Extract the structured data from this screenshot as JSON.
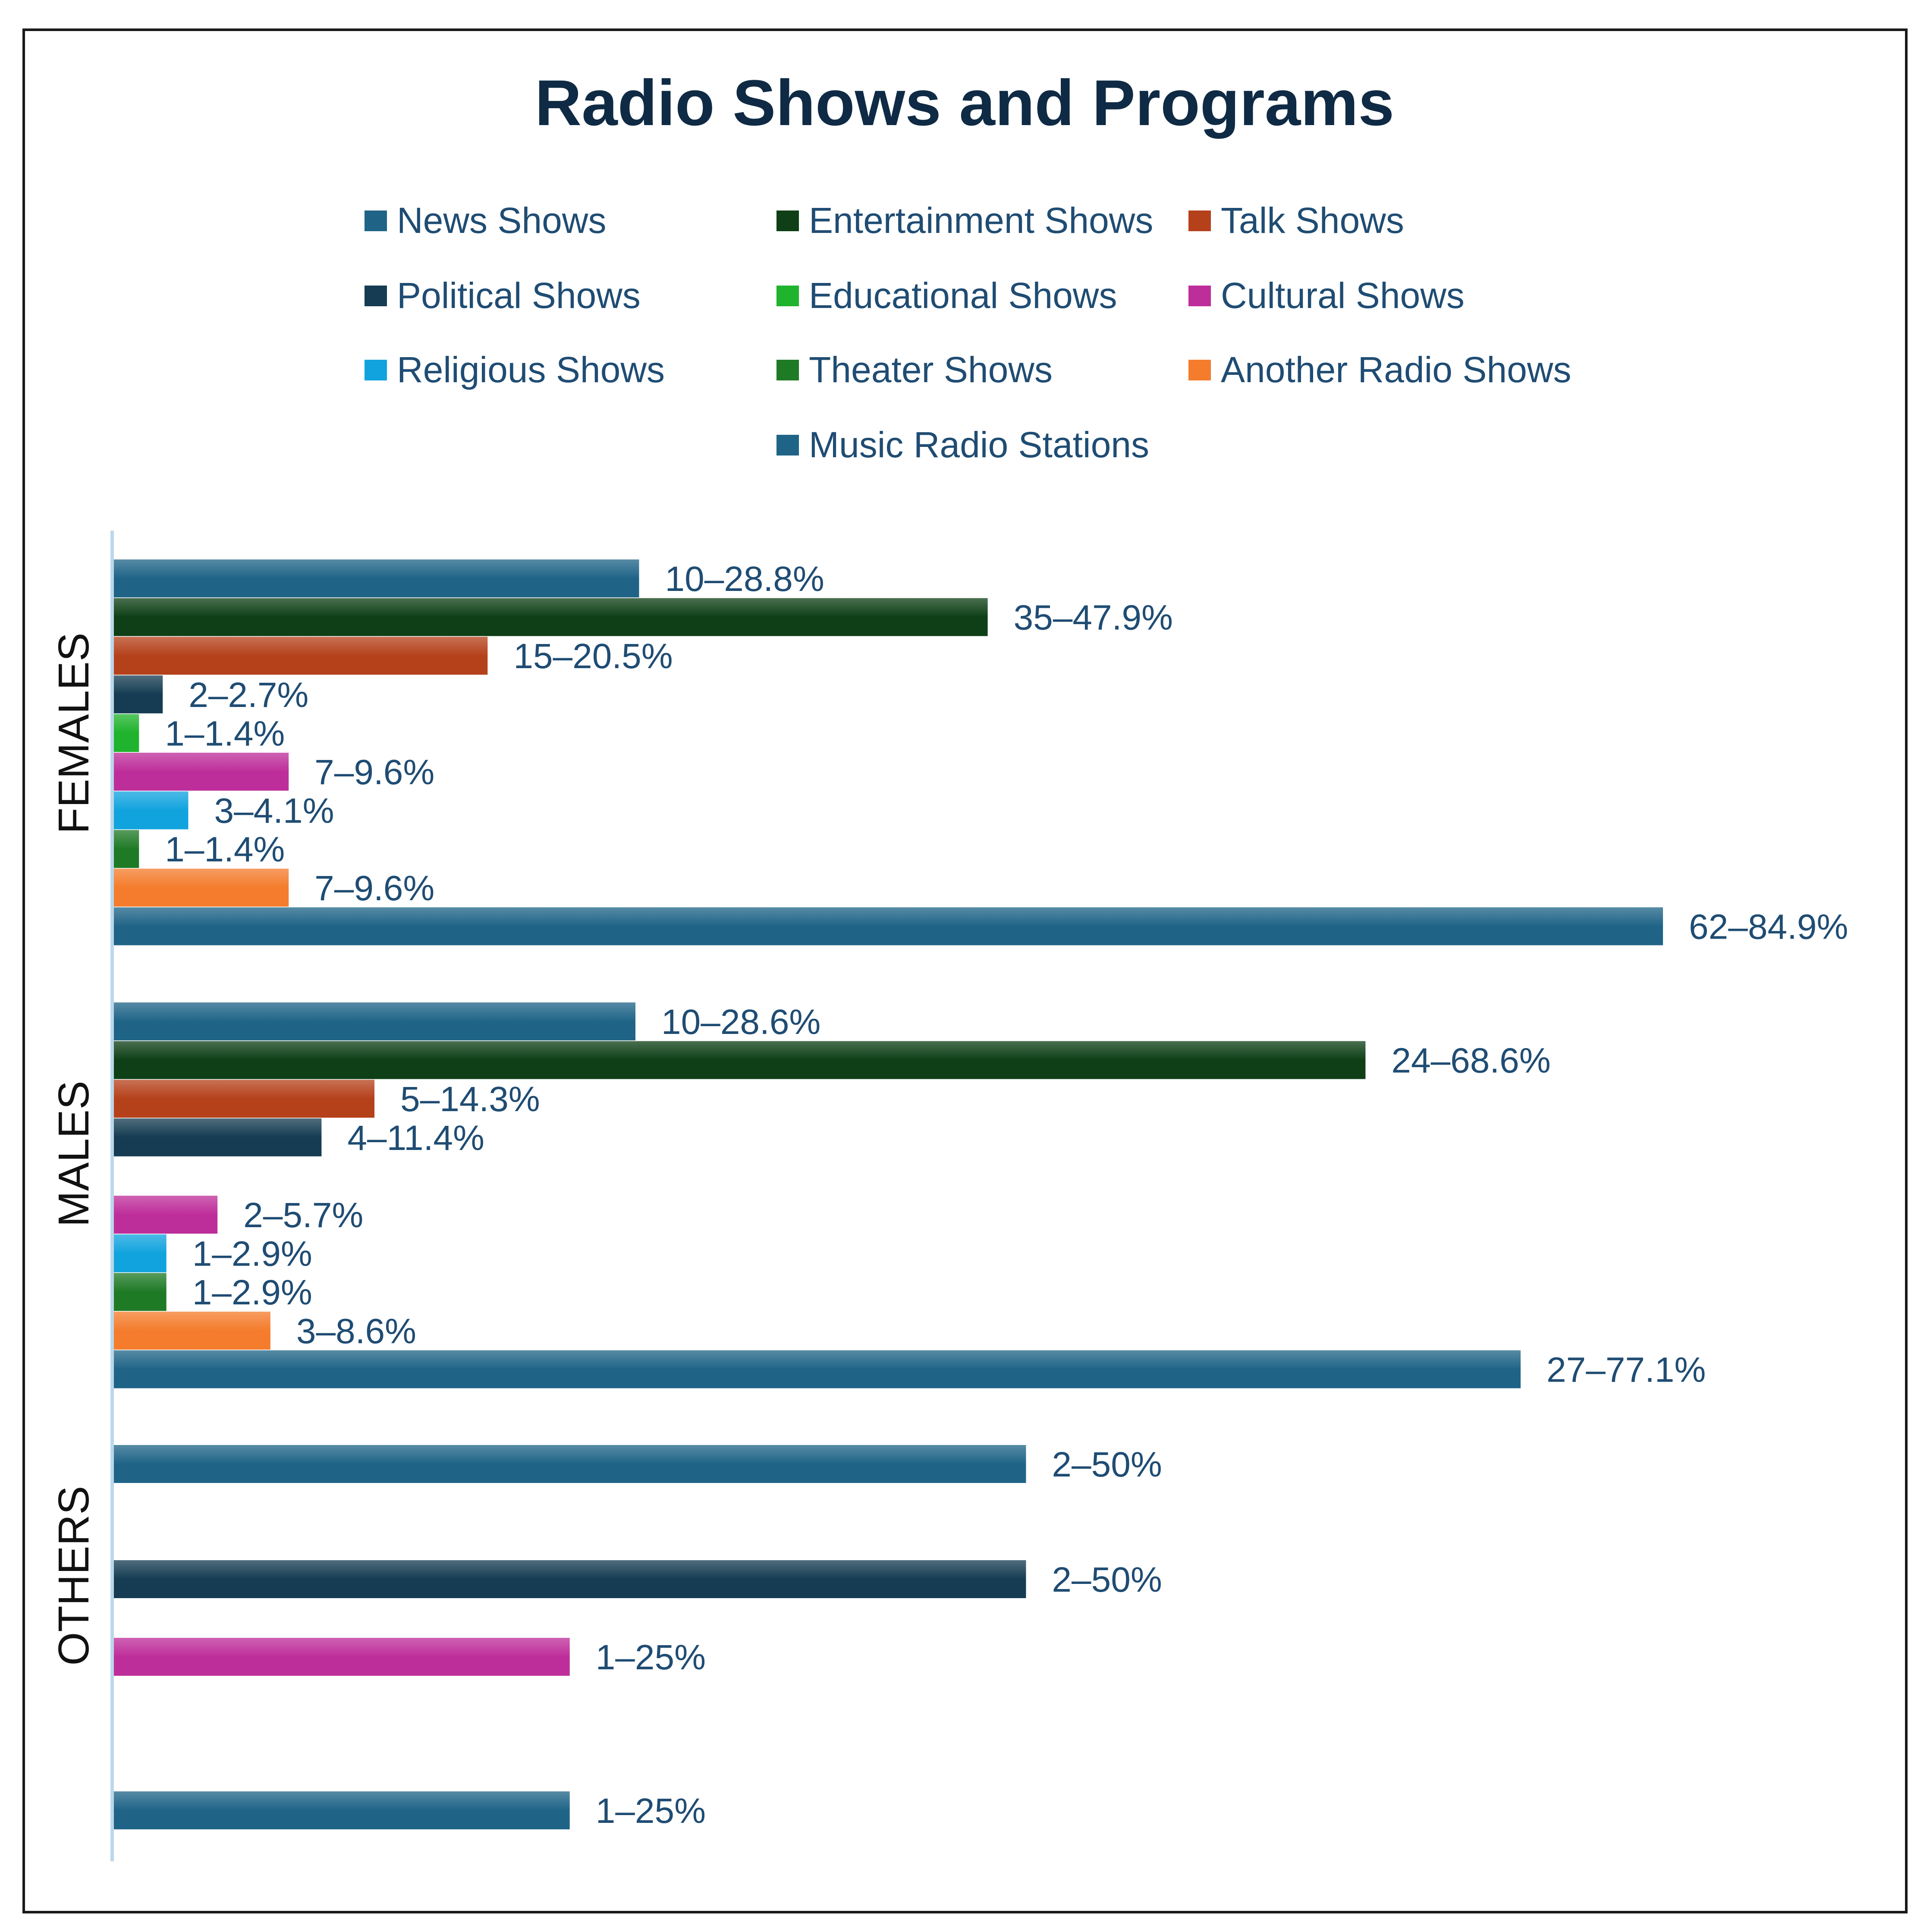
{
  "chart_data": {
    "type": "bar",
    "orientation": "horizontal",
    "title": "Radio Shows and Programs",
    "xlim": [
      0,
      100
    ],
    "grid": false,
    "legend_position": "top",
    "series": [
      {
        "name": "News Shows",
        "color": "#1f6487"
      },
      {
        "name": "Entertainment Shows",
        "color": "#0e3f16"
      },
      {
        "name": "Talk Shows",
        "color": "#b5411b"
      },
      {
        "name": "Political Shows",
        "color": "#153c52"
      },
      {
        "name": "Educational Shows",
        "color": "#20b32d"
      },
      {
        "name": "Cultural Shows",
        "color": "#be2e9a"
      },
      {
        "name": "Religious Shows",
        "color": "#11a3de"
      },
      {
        "name": "Theater Shows",
        "color": "#1f7a26"
      },
      {
        "name": "Another Radio Shows",
        "color": "#f47c2c"
      },
      {
        "name": "Music Radio Stations",
        "color": "#1f6487"
      }
    ],
    "groups": [
      {
        "name": "FEMALES",
        "bars": [
          {
            "series": "News Shows",
            "value": 28.8,
            "label": "10–28.8%"
          },
          {
            "series": "Entertainment Shows",
            "value": 47.9,
            "label": "35–47.9%"
          },
          {
            "series": "Talk Shows",
            "value": 20.5,
            "label": "15–20.5%"
          },
          {
            "series": "Political Shows",
            "value": 2.7,
            "label": "2–2.7%"
          },
          {
            "series": "Educational Shows",
            "value": 1.4,
            "label": "1–1.4%"
          },
          {
            "series": "Cultural Shows",
            "value": 9.6,
            "label": "7–9.6%"
          },
          {
            "series": "Religious Shows",
            "value": 4.1,
            "label": "3–4.1%"
          },
          {
            "series": "Theater Shows",
            "value": 1.4,
            "label": "1–1.4%"
          },
          {
            "series": "Another Radio Shows",
            "value": 9.6,
            "label": "7–9.6%"
          },
          {
            "series": "Music Radio Stations",
            "value": 84.9,
            "label": "62–84.9%"
          }
        ]
      },
      {
        "name": "MALES",
        "bars": [
          {
            "series": "News Shows",
            "value": 28.6,
            "label": "10–28.6%"
          },
          {
            "series": "Entertainment Shows",
            "value": 68.6,
            "label": "24–68.6%"
          },
          {
            "series": "Talk Shows",
            "value": 14.3,
            "label": "5–14.3%"
          },
          {
            "series": "Political Shows",
            "value": 11.4,
            "label": "4–11.4%"
          },
          {
            "series": "Educational Shows",
            "value": null,
            "label": ""
          },
          {
            "series": "Cultural Shows",
            "value": 5.7,
            "label": "2–5.7%"
          },
          {
            "series": "Religious Shows",
            "value": 2.9,
            "label": "1–2.9%"
          },
          {
            "series": "Theater Shows",
            "value": 2.9,
            "label": "1–2.9%"
          },
          {
            "series": "Another Radio Shows",
            "value": 8.6,
            "label": "3–8.6%"
          },
          {
            "series": "Music Radio Stations",
            "value": 77.1,
            "label": "27–77.1%"
          }
        ]
      },
      {
        "name": "OTHERS",
        "bars": [
          {
            "series": "News Shows",
            "value": 50,
            "label": "2–50%"
          },
          {
            "series": "Political Shows",
            "value": 50,
            "label": "2–50%"
          },
          {
            "series": "Cultural Shows",
            "value": 25,
            "label": "1–25%"
          },
          {
            "series": "Music Radio Stations",
            "value": 25,
            "label": "1–25%"
          }
        ]
      }
    ]
  }
}
